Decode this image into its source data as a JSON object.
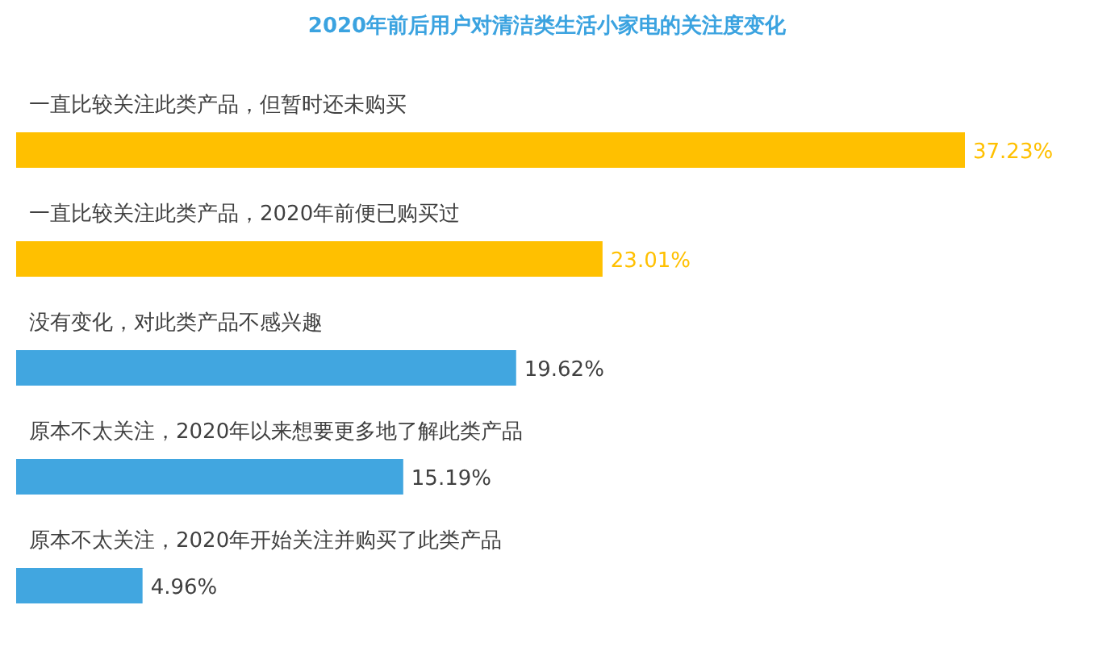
{
  "chart_data": {
    "type": "bar",
    "orientation": "horizontal",
    "title": "2020年前后用户对清洁类生活小家电的关注度变化",
    "categories": [
      "一直比较关注此类产品，但暂时还未购买",
      "一直比较关注此类产品，2020年前便已购买过",
      "没有变化，对此类产品不感兴趣",
      "原本不太关注，2020年以来想要更多地了解此类产品",
      "原本不太关注，2020年开始关注并购买了此类产品"
    ],
    "values": [
      37.23,
      23.01,
      19.62,
      15.19,
      4.96
    ],
    "colors": [
      "#ffc000",
      "#ffc000",
      "#41a6e0",
      "#41a6e0",
      "#41a6e0"
    ],
    "value_labels": [
      "37.23%",
      "23.01%",
      "19.62%",
      "15.19%",
      "4.96%"
    ]
  }
}
